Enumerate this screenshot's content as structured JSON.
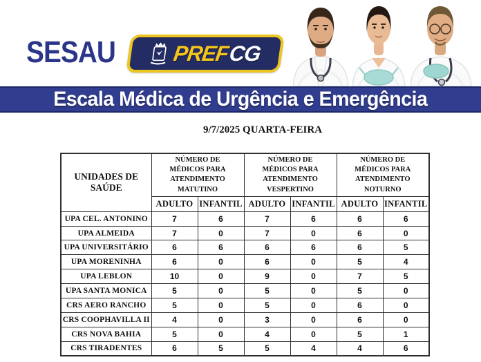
{
  "logos": {
    "sesau": "SESAU",
    "prefcg_pref": "PREF",
    "prefcg_cg": "CG"
  },
  "colors": {
    "banner_bg": "#313d8e",
    "banner_border": "#1b2768",
    "sesau_navy": "#2b3589",
    "badge_navy": "#232d63",
    "badge_yellow": "#eec51f",
    "mask_teal": "#a9dbd6"
  },
  "banner": {
    "title": "Escala Médica de Urgência e Emergência"
  },
  "date_line": "9/7/2025 QUARTA-FEIRA",
  "schedule_table": {
    "unit_column_header": "UNIDADES DE SAÚDE",
    "group_headers": [
      "NÚMERO DE MÉDICOS PARA ATENDIMENTO MATUTINO",
      "NÚMERO DE MÉDICOS PARA ATENDIMENTO VESPERTINO",
      "NÚMERO DE MÉDICOS PARA ATENDIMENTO NOTURNO"
    ],
    "sub_headers": [
      "ADULTO",
      "INFANTIL"
    ],
    "rows": [
      {
        "unit": "UPA CEL. ANTONINO",
        "values": [
          "7",
          "6",
          "7",
          "6",
          "6",
          "6"
        ]
      },
      {
        "unit": "UPA ALMEIDA",
        "values": [
          "7",
          "0",
          "7",
          "0",
          "6",
          "0"
        ]
      },
      {
        "unit": "UPA UNIVERSITÁRIO",
        "values": [
          "6",
          "6",
          "6",
          "6",
          "6",
          "5"
        ]
      },
      {
        "unit": "UPA MORENINHA",
        "values": [
          "6",
          "0",
          "6",
          "0",
          "5",
          "4"
        ]
      },
      {
        "unit": "UPA LEBLON",
        "values": [
          "10",
          "0",
          "9",
          "0",
          "7",
          "5"
        ]
      },
      {
        "unit": "UPA SANTA MONICA",
        "values": [
          "5",
          "0",
          "5",
          "0",
          "5",
          "0"
        ]
      },
      {
        "unit": "CRS AERO RANCHO",
        "values": [
          "5",
          "0",
          "5",
          "0",
          "6",
          "0"
        ]
      },
      {
        "unit": "CRS COOPHAVILLA II",
        "values": [
          "4",
          "0",
          "3",
          "0",
          "6",
          "0"
        ]
      },
      {
        "unit": "CRS NOVA BAHIA",
        "values": [
          "5",
          "0",
          "4",
          "0",
          "5",
          "1"
        ]
      },
      {
        "unit": "CRS TIRADENTES",
        "values": [
          "6",
          "5",
          "5",
          "4",
          "4",
          "6"
        ]
      }
    ]
  }
}
